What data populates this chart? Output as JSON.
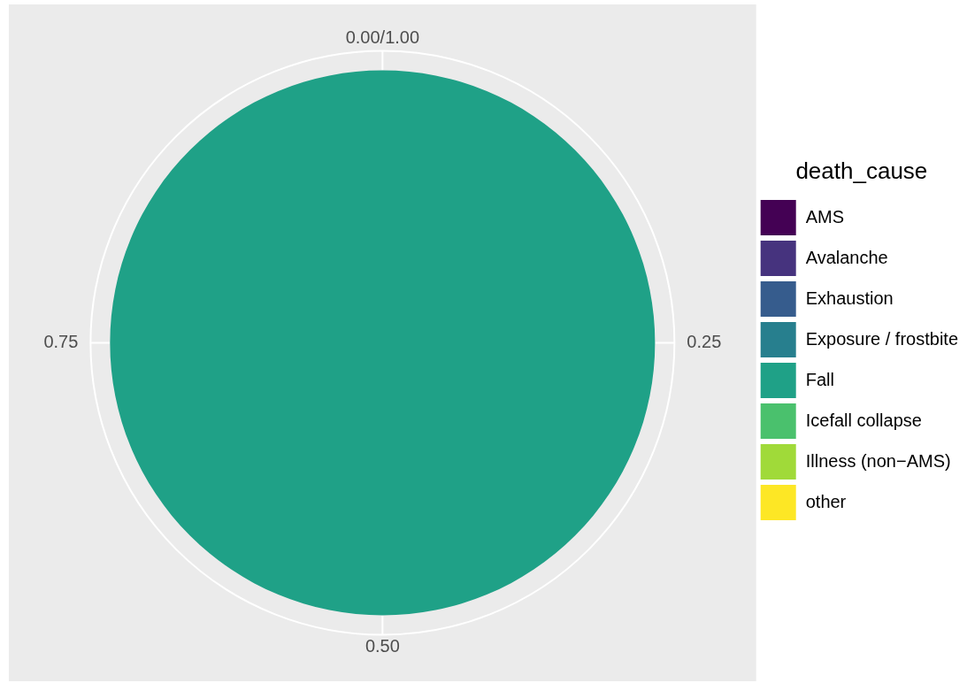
{
  "chart_data": {
    "type": "pie",
    "legend_title": "death_cause",
    "legend": "right",
    "grid": true,
    "categories": [
      "AMS",
      "Avalanche",
      "Exhaustion",
      "Exposure / frostbite",
      "Fall",
      "Icefall collapse",
      "Illness (non−AMS)",
      "other"
    ],
    "values": [
      0,
      0,
      0,
      0,
      100,
      0,
      0,
      0
    ],
    "colors": [
      "#440154",
      "#46337e",
      "#365c8d",
      "#277f8e",
      "#1fa187",
      "#4ac16d",
      "#a0da39",
      "#fde725"
    ],
    "annotations": [
      "0.00/1.00",
      "0.25",
      "0.50",
      "0.75"
    ]
  }
}
